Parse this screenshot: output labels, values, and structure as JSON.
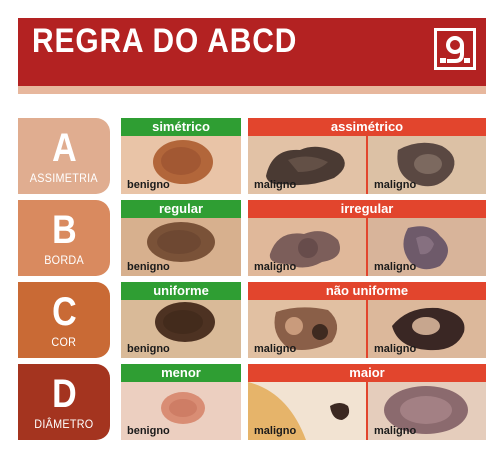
{
  "header": {
    "title": "REGRA DO ABCD",
    "logo_icon": "pharmacy-g-logo-icon",
    "color": "#b32222"
  },
  "colors": {
    "benign_label": "#2f9e33",
    "malignant_label": "#e2452d",
    "row_A": "#e0ad90",
    "row_B": "#d98a5f",
    "row_C": "#c96a35",
    "row_D": "#a4341f"
  },
  "rows": [
    {
      "letter": "A",
      "name": "ASSIMETRIA",
      "benign_label": "simétrico",
      "malignant_label": "assimétrico",
      "benign_caption": "benigno",
      "malignant_caption_1": "maligno",
      "malignant_caption_2": "maligno"
    },
    {
      "letter": "B",
      "name": "BORDA",
      "benign_label": "regular",
      "malignant_label": "irregular",
      "benign_caption": "benigno",
      "malignant_caption_1": "maligno",
      "malignant_caption_2": "maligno"
    },
    {
      "letter": "C",
      "name": "COR",
      "benign_label": "uniforme",
      "malignant_label": "não uniforme",
      "benign_caption": "benigno",
      "malignant_caption_1": "maligno",
      "malignant_caption_2": "maligno"
    },
    {
      "letter": "D",
      "name": "DIÂMETRO",
      "benign_label": "menor",
      "malignant_label": "maior",
      "benign_caption": "benigno",
      "malignant_caption_1": "maligno",
      "malignant_caption_2": "maligno"
    }
  ]
}
